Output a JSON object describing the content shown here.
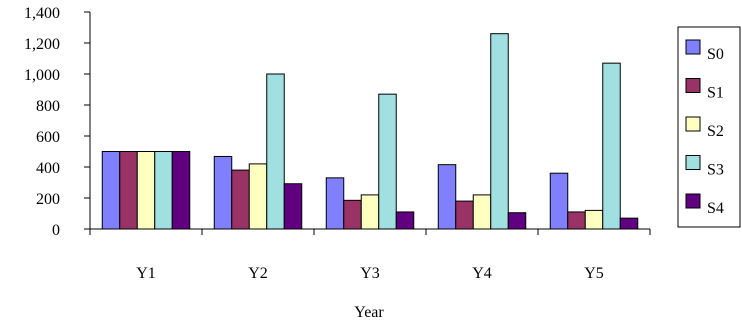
{
  "chart_data": {
    "type": "bar",
    "title": "",
    "xlabel": "Year",
    "ylabel": "",
    "categories": [
      "Y1",
      "Y2",
      "Y3",
      "Y4",
      "Y5"
    ],
    "ylim": [
      0,
      1400
    ],
    "yticks": [
      0,
      200,
      400,
      600,
      800,
      1000,
      1200,
      1400
    ],
    "ytick_labels": [
      "0",
      "200",
      "400",
      "600",
      "800",
      "1,000",
      "1,200",
      "1,400"
    ],
    "grid": false,
    "legend_position": "right",
    "series": [
      {
        "name": "S0",
        "color": "#8080FF",
        "values": [
          500,
          468,
          330,
          415,
          360
        ]
      },
      {
        "name": "S1",
        "color": "#993366",
        "values": [
          500,
          380,
          185,
          180,
          110
        ]
      },
      {
        "name": "S2",
        "color": "#FFFFC0",
        "values": [
          500,
          420,
          220,
          220,
          120
        ]
      },
      {
        "name": "S3",
        "color": "#A0E0E0",
        "values": [
          500,
          1000,
          870,
          1260,
          1070
        ]
      },
      {
        "name": "S4",
        "color": "#600080",
        "values": [
          500,
          292,
          110,
          105,
          70
        ]
      }
    ]
  }
}
